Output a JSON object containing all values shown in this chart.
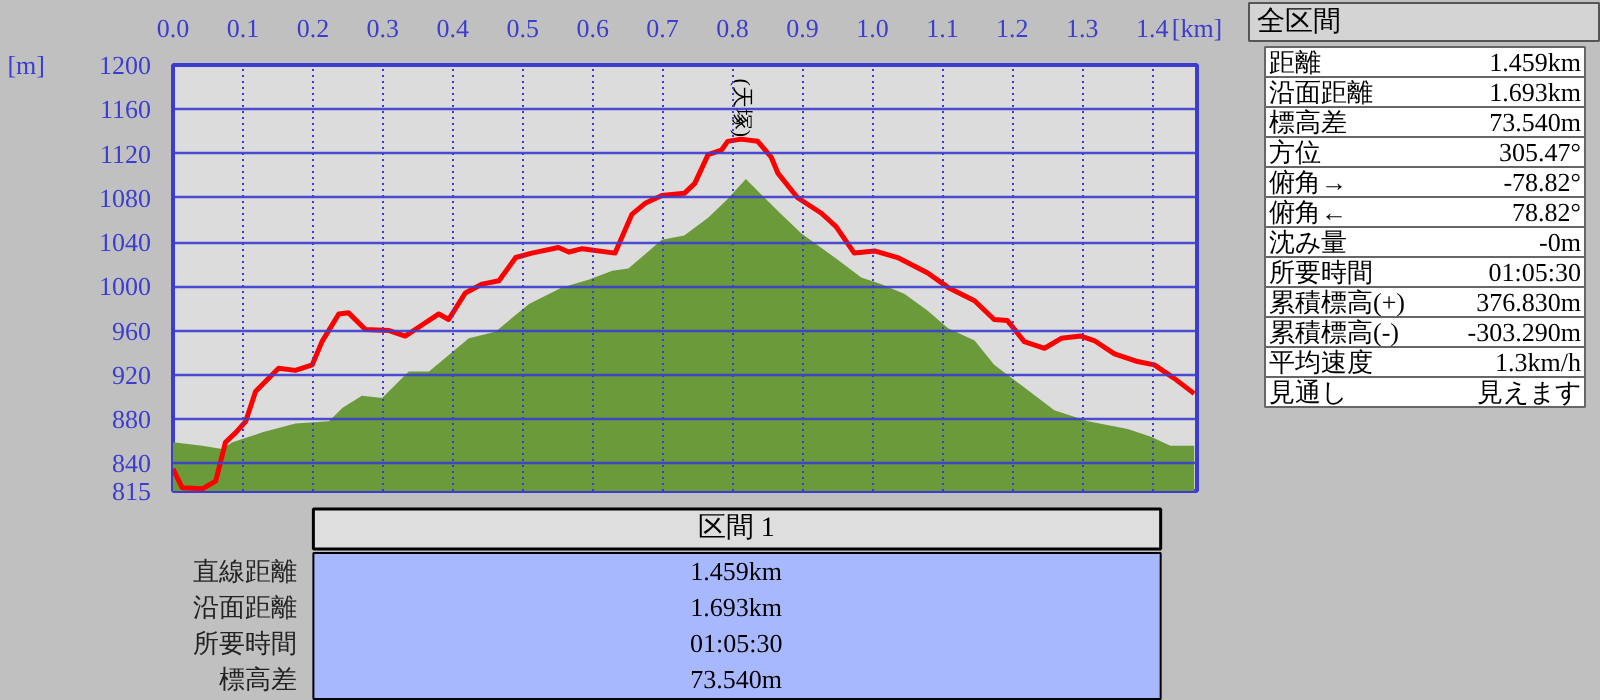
{
  "chart_data": [
    {
      "type": "line",
      "xlabel": "[km]",
      "ylabel": "[m]",
      "xlim": [
        0,
        1.464
      ],
      "ylim": [
        815,
        1200
      ],
      "xticks": [
        {
          "value": 0,
          "label": "0.0"
        },
        0.1,
        0.2,
        0.3,
        0.4,
        0.5,
        0.6,
        0.7,
        0.8,
        0.9,
        {
          "value": 1.0,
          "label": "1.0"
        },
        1.1,
        1.2,
        1.3,
        1.4
      ],
      "yticks": [
        815,
        840,
        880,
        920,
        960,
        1000,
        1040,
        1080,
        1120,
        1160,
        1200
      ],
      "grid": true,
      "annotations": [
        {
          "text": "(天塚)",
          "x": 0.812,
          "y": 1133
        }
      ],
      "series": [
        {
          "type": "area",
          "color": "#6a9a3a",
          "x": [
            0,
            0.042,
            0.07,
            0.085,
            0.128,
            0.175,
            0.223,
            0.242,
            0.27,
            0.299,
            0.337,
            0.366,
            0.423,
            0.461,
            0.509,
            0.556,
            0.594,
            0.628,
            0.651,
            0.699,
            0.731,
            0.765,
            0.793,
            0.819,
            0.841,
            0.87,
            0.898,
            0.946,
            0.984,
            1.012,
            1.046,
            1.079,
            1.108,
            1.146,
            1.174,
            1.212,
            1.26,
            1.308,
            1.365,
            1.398,
            1.426,
            1.46
          ],
          "values": [
            859,
            856,
            853,
            859,
            868,
            876,
            878,
            890,
            901,
            899,
            923,
            923,
            953,
            959,
            984,
            999,
            1006,
            1014,
            1016,
            1042,
            1046,
            1062,
            1079,
            1097,
            1083,
            1065,
            1048,
            1026,
            1008,
            1002,
            993,
            978,
            962,
            951,
            929,
            911,
            888,
            878,
            871,
            864,
            856,
            856
          ]
        },
        {
          "type": "line",
          "color": "#ff0000",
          "x": [
            0,
            0.013,
            0.042,
            0.061,
            0.075,
            0.09,
            0.104,
            0.118,
            0.151,
            0.175,
            0.199,
            0.213,
            0.237,
            0.251,
            0.275,
            0.309,
            0.332,
            0.356,
            0.38,
            0.394,
            0.418,
            0.442,
            0.466,
            0.49,
            0.513,
            0.551,
            0.566,
            0.585,
            0.632,
            0.656,
            0.675,
            0.699,
            0.731,
            0.746,
            0.765,
            0.784,
            0.793,
            0.812,
            0.836,
            0.855,
            0.865,
            0.893,
            0.927,
            0.948,
            0.974,
            1.003,
            1.036,
            1.079,
            1.108,
            1.146,
            1.174,
            1.193,
            1.217,
            1.246,
            1.27,
            1.298,
            1.317,
            1.346,
            1.379,
            1.403,
            1.431,
            1.46
          ],
          "values": [
            835,
            818,
            817,
            824,
            859,
            868,
            878,
            905,
            926,
            924,
            929,
            950,
            975,
            976,
            961,
            960,
            955,
            965,
            975,
            970,
            994,
            1002,
            1005,
            1026,
            1030,
            1035,
            1031,
            1034,
            1030,
            1065,
            1075,
            1082,
            1084,
            1093,
            1119,
            1123,
            1131,
            1133,
            1131,
            1117,
            1102,
            1080,
            1066,
            1054,
            1030,
            1032,
            1026,
            1012,
            999,
            987,
            970,
            969,
            950,
            944,
            953,
            955,
            951,
            939,
            932,
            929,
            917,
            903
          ]
        }
      ]
    },
    {
      "type": "other",
      "title": "区間 1",
      "categories": [
        "直線距離",
        "沿面距離",
        "所要時間",
        "標高差"
      ],
      "value_labels": [
        "1.459km",
        "1.693km",
        "01:05:30",
        "73.540m"
      ]
    },
    {
      "type": "other",
      "title": "全区間",
      "categories": [
        "距離",
        "沿面距離",
        "標高差",
        "方位",
        "俯角→",
        "俯角←",
        "沈み量",
        "所要時間",
        "累積標高(+)",
        "累積標高(-)",
        "平均速度",
        "見通し"
      ],
      "value_labels": [
        "1.459km",
        "1.693km",
        "73.540m",
        "305.47°",
        "-78.82°",
        "78.82°",
        "-0m",
        "01:05:30",
        "376.830m",
        "-303.290m",
        "1.3km/h",
        "見えます"
      ]
    }
  ]
}
